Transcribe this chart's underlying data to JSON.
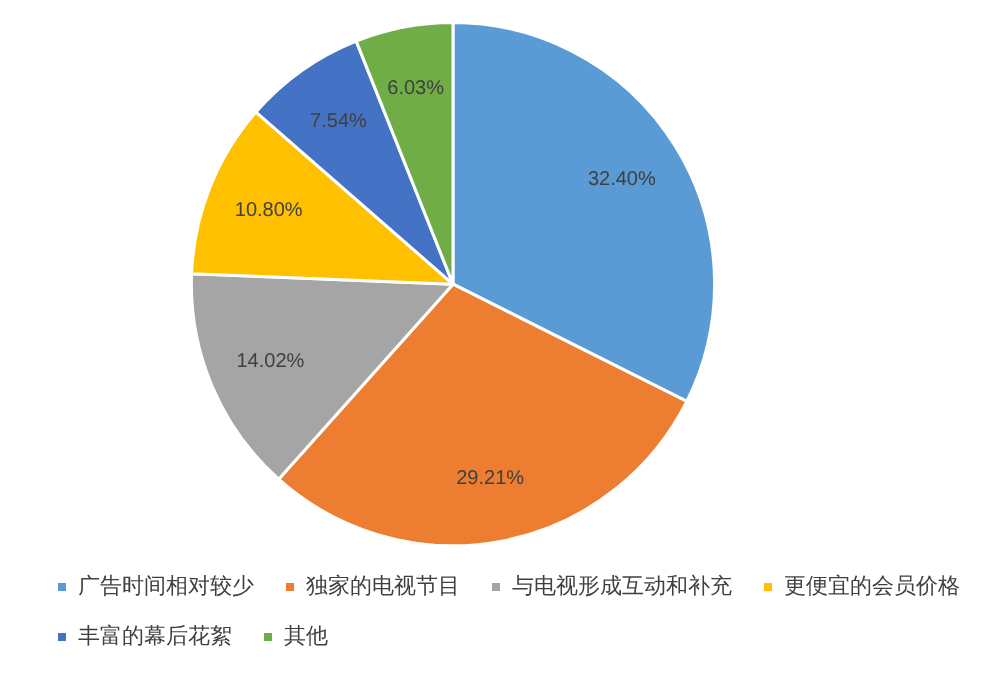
{
  "chart_data": {
    "type": "pie",
    "categories": [
      "广告时间相对较少",
      "独家的电视节目",
      "与电视形成互动和补充",
      "更便宜的会员价格",
      "丰富的幕后花絮",
      "其他"
    ],
    "values": [
      32.4,
      29.21,
      14.02,
      10.8,
      7.54,
      6.03
    ],
    "value_labels": [
      "32.40%",
      "29.21%",
      "14.02%",
      "10.80%",
      "7.54%",
      "6.03%"
    ],
    "colors": [
      "#5b9bd5",
      "#ed7d31",
      "#a5a5a5",
      "#ffc000",
      "#4472c4",
      "#70ad47"
    ],
    "legend": "bottom"
  }
}
